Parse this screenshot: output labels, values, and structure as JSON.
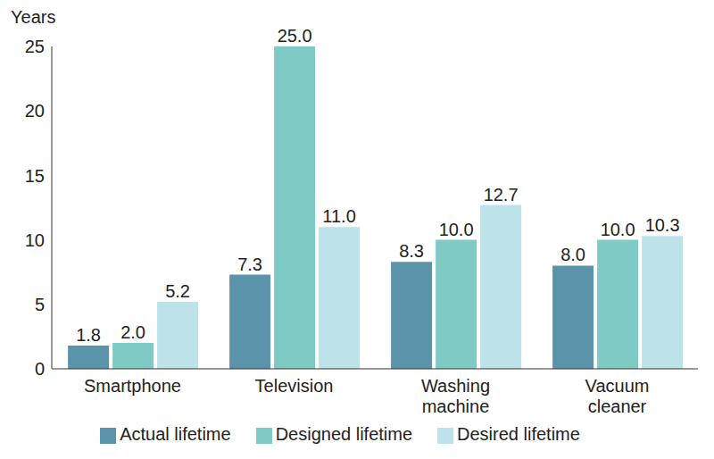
{
  "chart_data": {
    "type": "bar",
    "y_label": "Years",
    "categories": [
      "Smartphone",
      "Television",
      "Washing machine",
      "Vacuum cleaner"
    ],
    "series": [
      {
        "name": "Actual lifetime",
        "color": "#5a93aa",
        "values": [
          1.8,
          7.3,
          8.3,
          8.0
        ],
        "value_labels": [
          "1.8",
          "7.3",
          "8.3",
          "8.0"
        ]
      },
      {
        "name": "Designed lifetime",
        "color": "#80cac5",
        "values": [
          2.0,
          25.0,
          10.0,
          10.0
        ],
        "value_labels": [
          "2.0",
          "25.0",
          "10.0",
          "10.0"
        ]
      },
      {
        "name": "Desired lifetime",
        "color": "#bde2ea",
        "values": [
          5.2,
          11.0,
          12.7,
          10.3
        ],
        "value_labels": [
          "5.2",
          "11.0",
          "12.7",
          "10.3"
        ]
      }
    ],
    "ylim": [
      0,
      25
    ],
    "yticks": [
      0,
      5,
      10,
      15,
      20,
      25
    ],
    "grid": false,
    "legend": "bottom",
    "data_labels": true
  }
}
